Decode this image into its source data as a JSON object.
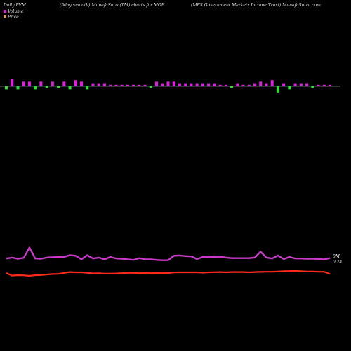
{
  "header": {
    "left": "Daily PVM",
    "middle": "(5day smooth) MunafaSutra(TM) charts for MGF",
    "right": "(MFS Government Markets Income   Trust) MunafaSutra.com"
  },
  "legend": {
    "volume_label": "Volume",
    "price_label": "Price"
  },
  "end_labels": {
    "volume": "0M",
    "price": "0.24"
  },
  "colors": {
    "background": "#000000",
    "price_line": "#ff2a1a",
    "pvm_line": "#e040e0",
    "bar_up": "#e020e0",
    "bar_down": "#33dd33",
    "baseline": "#c8c8c8"
  },
  "chart_data": {
    "type": "line",
    "description": "Price, smoothed volume line and daily PVM bars for MGF",
    "x": [
      1,
      2,
      3,
      4,
      5,
      6,
      7,
      8,
      9,
      10,
      11,
      12,
      13,
      14,
      15,
      16,
      17,
      18,
      19,
      20,
      21,
      22,
      23,
      24,
      25,
      26,
      27,
      28,
      29,
      30,
      31,
      32,
      33,
      34,
      35,
      36,
      37,
      38,
      39,
      40,
      41,
      42,
      43,
      44,
      45,
      46,
      47,
      48,
      49,
      50,
      51,
      52,
      53,
      54,
      55,
      56,
      57
    ],
    "series": [
      {
        "name": "Price",
        "values": [
          0.275,
          0.185,
          0.2,
          0.195,
          0.175,
          0.2,
          0.205,
          0.225,
          0.24,
          0.245,
          0.28,
          0.31,
          0.3,
          0.3,
          0.285,
          0.26,
          0.265,
          0.255,
          0.255,
          0.26,
          0.27,
          0.285,
          0.28,
          0.27,
          0.28,
          0.27,
          0.275,
          0.27,
          0.275,
          0.295,
          0.3,
          0.3,
          0.3,
          0.3,
          0.29,
          0.3,
          0.305,
          0.31,
          0.3,
          0.31,
          0.31,
          0.31,
          0.3,
          0.31,
          0.315,
          0.32,
          0.32,
          0.33,
          0.34,
          0.345,
          0.35,
          0.34,
          0.33,
          0.33,
          0.32,
          0.32,
          0.24
        ]
      },
      {
        "name": "Volume (5day smooth)",
        "values": [
          0.33,
          0.36,
          0.32,
          0.35,
          0.7,
          0.33,
          0.32,
          0.36,
          0.37,
          0.38,
          0.38,
          0.44,
          0.42,
          0.3,
          0.44,
          0.33,
          0.36,
          0.3,
          0.38,
          0.33,
          0.32,
          0.3,
          0.28,
          0.34,
          0.3,
          0.3,
          0.28,
          0.27,
          0.27,
          0.42,
          0.43,
          0.41,
          0.4,
          0.31,
          0.38,
          0.39,
          0.38,
          0.39,
          0.36,
          0.34,
          0.34,
          0.34,
          0.34,
          0.36,
          0.56,
          0.36,
          0.33,
          0.43,
          0.31,
          0.38,
          0.33,
          0.33,
          0.32,
          0.32,
          0.31,
          0.3,
          0.34
        ]
      },
      {
        "name": "PVM",
        "type": "bar",
        "values": [
          -2,
          5,
          -2,
          3,
          3,
          -2,
          3,
          -1,
          3,
          -1,
          3,
          -2,
          4,
          3,
          -2,
          2,
          2,
          2,
          1,
          1,
          1,
          1,
          1,
          1,
          1,
          -1,
          3,
          2,
          3,
          3,
          2,
          2,
          2,
          2,
          2,
          2,
          2,
          1,
          1,
          -1,
          2,
          1,
          1,
          2,
          3,
          2,
          4,
          -4,
          2,
          -2,
          2,
          2,
          2,
          -1,
          1,
          1,
          1
        ]
      }
    ],
    "title": "(5day smooth) MunafaSutra(TM) charts for MGF",
    "xlabel": "",
    "ylabel": "",
    "grid": false,
    "legend_position": "top-left"
  }
}
